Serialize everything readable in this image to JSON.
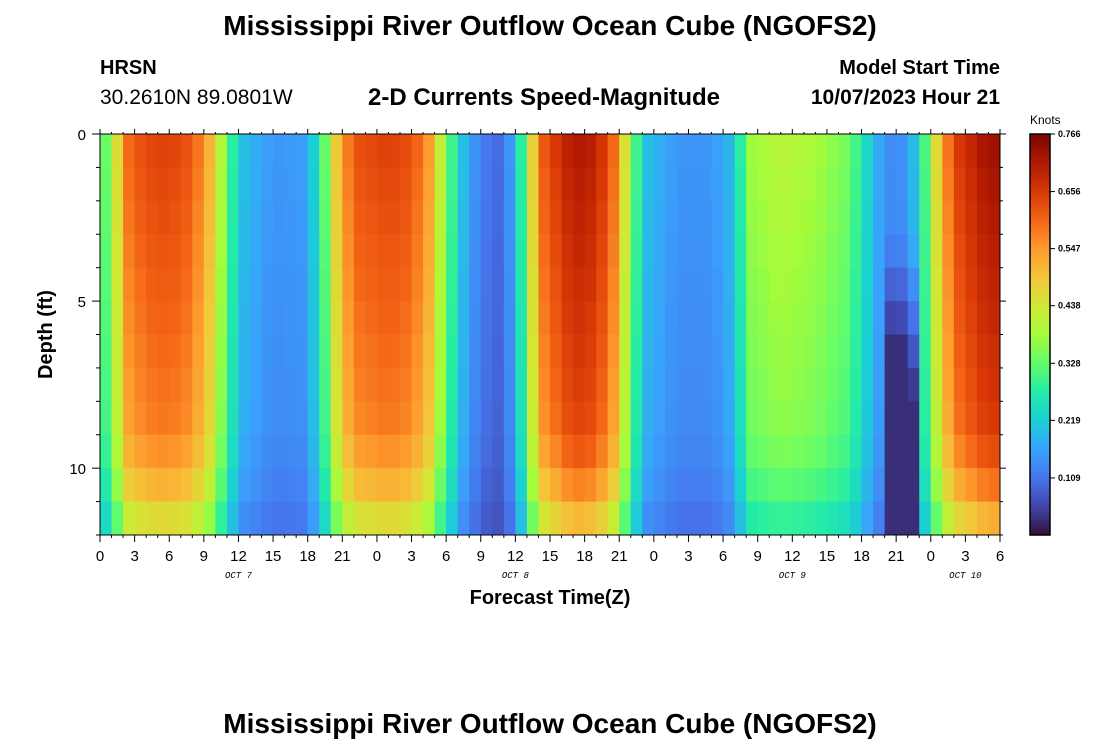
{
  "header": {
    "title": "Mississippi River Outflow Ocean Cube (NGOFS2)",
    "station": "HRSN",
    "coords": "30.2610N  89.0801W",
    "subtitle": "2-D Currents Speed-Magnitude",
    "model_start_label": "Model Start Time",
    "model_start_value": "10/07/2023 Hour 21"
  },
  "footer": {
    "title": "Mississippi River Outflow Ocean Cube (NGOFS2)"
  },
  "colors": {
    "cmap": [
      "#30123b",
      "#4145ab",
      "#4675ed",
      "#39a2fc",
      "#1bcfd4",
      "#24eca6",
      "#61fc6c",
      "#a4fc3b",
      "#d1e834",
      "#f3c63a",
      "#fe9b2d",
      "#f36315",
      "#d93806",
      "#b11901",
      "#7a0403"
    ]
  },
  "chart_data": {
    "type": "heatmap",
    "xlabel": "Forecast Time(Z)",
    "ylabel": "Depth (ft)",
    "x_tick_labels": [
      "0",
      "3",
      "6",
      "9",
      "12",
      "15",
      "18",
      "21",
      "0",
      "3",
      "6",
      "9",
      "12",
      "15",
      "18",
      "21",
      "0",
      "3",
      "6",
      "9",
      "12",
      "15",
      "18",
      "21",
      "0",
      "3",
      "6"
    ],
    "x_range_hours": [
      0,
      78
    ],
    "y_ticks": [
      0,
      5,
      10
    ],
    "y_range_ft": [
      0,
      12
    ],
    "date_labels": [
      {
        "text": "OCT 7",
        "hour": 12
      },
      {
        "text": "OCT 8",
        "hour": 36
      },
      {
        "text": "OCT 9",
        "hour": 60
      },
      {
        "text": "OCT 10",
        "hour": 75
      }
    ],
    "colorbar": {
      "unit": "Knots",
      "min": 0.0,
      "max": 0.766,
      "tick_labels": [
        "0.766",
        "0.656",
        "0.547",
        "0.438",
        "0.328",
        "0.219",
        "0.109"
      ],
      "tick_values": [
        0.766,
        0.656,
        0.547,
        0.438,
        0.328,
        0.219,
        0.109
      ]
    },
    "surface_speed_profile": [
      {
        "hour": 0,
        "value": 0.28
      },
      {
        "hour": 0.7,
        "value": 0.36
      },
      {
        "hour": 1.5,
        "value": 0.46
      },
      {
        "hour": 2.5,
        "value": 0.6
      },
      {
        "hour": 4,
        "value": 0.64
      },
      {
        "hour": 6,
        "value": 0.65
      },
      {
        "hour": 8,
        "value": 0.62
      },
      {
        "hour": 9.5,
        "value": 0.52
      },
      {
        "hour": 10.5,
        "value": 0.4
      },
      {
        "hour": 11.5,
        "value": 0.28
      },
      {
        "hour": 12.5,
        "value": 0.2
      },
      {
        "hour": 15,
        "value": 0.15
      },
      {
        "hour": 17.5,
        "value": 0.16
      },
      {
        "hour": 18.5,
        "value": 0.22
      },
      {
        "hour": 19.3,
        "value": 0.3
      },
      {
        "hour": 20,
        "value": 0.42
      },
      {
        "hour": 21,
        "value": 0.56
      },
      {
        "hour": 22.5,
        "value": 0.63
      },
      {
        "hour": 25,
        "value": 0.65
      },
      {
        "hour": 27,
        "value": 0.63
      },
      {
        "hour": 28.5,
        "value": 0.55
      },
      {
        "hour": 29.5,
        "value": 0.42
      },
      {
        "hour": 30.5,
        "value": 0.3
      },
      {
        "hour": 31.5,
        "value": 0.2
      },
      {
        "hour": 33,
        "value": 0.12
      },
      {
        "hour": 34.5,
        "value": 0.1
      },
      {
        "hour": 35.5,
        "value": 0.15
      },
      {
        "hour": 36.5,
        "value": 0.28
      },
      {
        "hour": 37.3,
        "value": 0.45
      },
      {
        "hour": 38.5,
        "value": 0.62
      },
      {
        "hour": 41,
        "value": 0.72
      },
      {
        "hour": 43,
        "value": 0.7
      },
      {
        "hour": 44.5,
        "value": 0.6
      },
      {
        "hour": 45.5,
        "value": 0.45
      },
      {
        "hour": 46.5,
        "value": 0.3
      },
      {
        "hour": 47.5,
        "value": 0.2
      },
      {
        "hour": 50,
        "value": 0.15
      },
      {
        "hour": 53,
        "value": 0.15
      },
      {
        "hour": 54.5,
        "value": 0.19
      },
      {
        "hour": 55.5,
        "value": 0.28
      },
      {
        "hour": 56.5,
        "value": 0.38
      },
      {
        "hour": 59,
        "value": 0.41
      },
      {
        "hour": 62,
        "value": 0.39
      },
      {
        "hour": 64.5,
        "value": 0.35
      },
      {
        "hour": 66,
        "value": 0.28
      },
      {
        "hour": 67,
        "value": 0.19
      },
      {
        "hour": 68.5,
        "value": 0.14
      },
      {
        "hour": 70,
        "value": 0.15
      },
      {
        "hour": 71,
        "value": 0.24
      },
      {
        "hour": 72,
        "value": 0.38
      },
      {
        "hour": 73,
        "value": 0.55
      },
      {
        "hour": 74.5,
        "value": 0.66
      },
      {
        "hour": 76.5,
        "value": 0.72
      },
      {
        "hour": 78,
        "value": 0.74
      }
    ]
  }
}
